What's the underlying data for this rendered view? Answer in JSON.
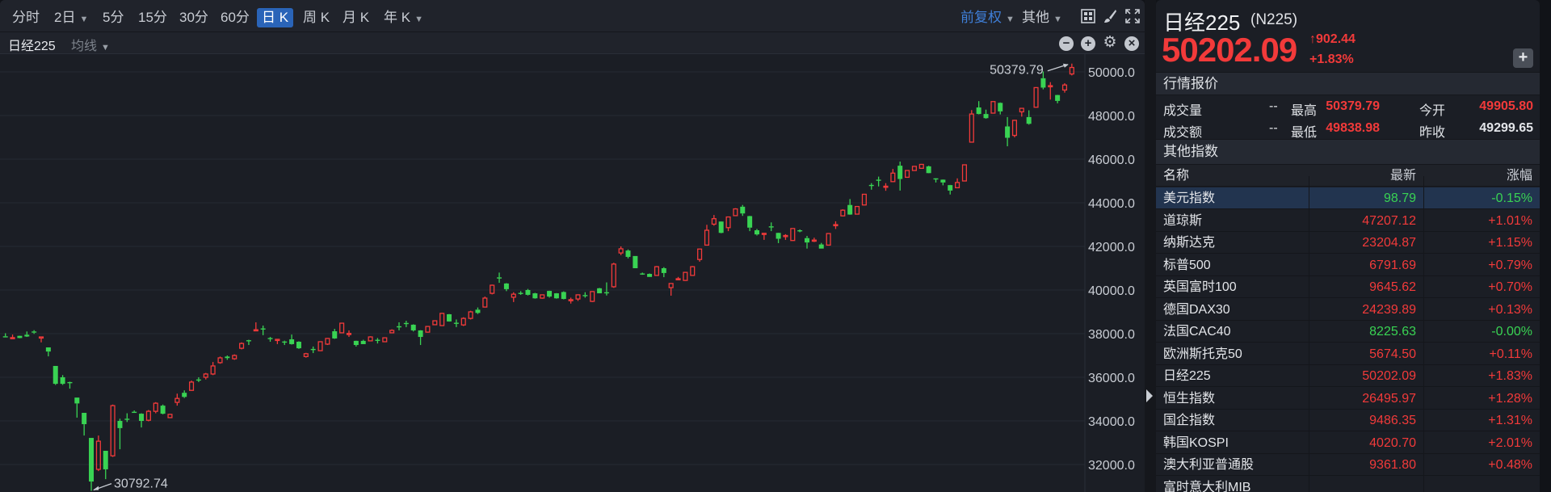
{
  "toolbar": {
    "periods": [
      {
        "label": "分时",
        "active": false
      },
      {
        "label": "2日",
        "active": false,
        "dropdown": true
      },
      {
        "label": "5分",
        "active": false
      },
      {
        "label": "15分",
        "active": false
      },
      {
        "label": "30分",
        "active": false
      },
      {
        "label": "60分",
        "active": false
      },
      {
        "label": "日 K",
        "active": true
      },
      {
        "label": "周 K",
        "active": false
      },
      {
        "label": "月 K",
        "active": false
      },
      {
        "label": "年 K",
        "active": false,
        "dropdown": true
      }
    ],
    "adjust": "前复权",
    "other": "其他",
    "icons": [
      "grid-layout-icon",
      "brush-icon",
      "fullscreen-icon"
    ]
  },
  "chart_header": {
    "title": "日经225",
    "indicator": "均线",
    "icons": [
      "zoom-out-icon",
      "zoom-in-icon",
      "gear-icon",
      "close-icon"
    ]
  },
  "chart_data": {
    "type": "candlestick",
    "title": "",
    "ylim": [
      30792.74,
      50379.79
    ],
    "yticks": [
      "32000.0",
      "34000.0",
      "36000.0",
      "38000.0",
      "40000.0",
      "42000.0",
      "44000.0",
      "46000.0",
      "48000.0",
      "50000.0"
    ],
    "grid": true,
    "up_color": "#f23a3a",
    "down_color": "#39d353",
    "max_label": "50379.79",
    "min_label": "30792.74",
    "ohlc": [
      [
        37880,
        38020,
        37870,
        37870
      ],
      [
        37800,
        37960,
        37790,
        37820
      ],
      [
        37900,
        37910,
        37790,
        37800
      ],
      [
        37950,
        38100,
        37850,
        37870
      ],
      [
        38100,
        38160,
        37990,
        38050
      ],
      [
        37800,
        37860,
        37600,
        37850
      ],
      [
        37370,
        37370,
        36960,
        37180
      ],
      [
        36520,
        36520,
        35650,
        35700
      ],
      [
        36000,
        36100,
        35650,
        35700
      ],
      [
        35780,
        35800,
        35480,
        35760
      ],
      [
        35070,
        35070,
        34150,
        34800
      ],
      [
        34370,
        34370,
        33330,
        33850
      ],
      [
        33220,
        33220,
        30792.74,
        31220
      ],
      [
        31780,
        33330,
        31700,
        33070
      ],
      [
        32630,
        32630,
        31330,
        31780
      ],
      [
        32400,
        34750,
        32350,
        34700
      ],
      [
        34000,
        34100,
        32700,
        33670
      ],
      [
        34100,
        34350,
        33950,
        34080
      ],
      [
        34420,
        34480,
        34380,
        34400
      ],
      [
        34330,
        34350,
        33700,
        34000
      ],
      [
        34030,
        34500,
        33980,
        34440
      ],
      [
        34440,
        34860,
        34350,
        34810
      ],
      [
        34700,
        34750,
        34300,
        34330
      ],
      [
        34150,
        34320,
        34130,
        34300
      ],
      [
        34850,
        35250,
        34700,
        35030
      ],
      [
        35290,
        35400,
        35050,
        35100
      ],
      [
        35400,
        35850,
        35380,
        35780
      ],
      [
        35900,
        36000,
        35780,
        35850
      ],
      [
        36000,
        36200,
        35900,
        36150
      ],
      [
        36150,
        36700,
        36100,
        36520
      ],
      [
        36670,
        36950,
        36620,
        36890
      ],
      [
        36950,
        37000,
        36800,
        36880
      ],
      [
        36850,
        37050,
        36800,
        37000
      ],
      [
        37330,
        37600,
        37280,
        37550
      ],
      [
        37700,
        37720,
        37480,
        37680
      ],
      [
        38160,
        38520,
        38150,
        38180
      ],
      [
        38240,
        38370,
        37930,
        38200
      ],
      [
        37800,
        37850,
        37630,
        37770
      ],
      [
        37720,
        37760,
        37520,
        37740
      ],
      [
        37640,
        37680,
        37480,
        37600
      ],
      [
        37740,
        37960,
        37500,
        37520
      ],
      [
        37630,
        37650,
        37300,
        37330
      ],
      [
        36950,
        37120,
        36900,
        37080
      ],
      [
        37300,
        37410,
        37110,
        37280
      ],
      [
        37220,
        37650,
        37200,
        37630
      ],
      [
        37520,
        37800,
        37480,
        37780
      ],
      [
        38110,
        38220,
        37760,
        37780
      ],
      [
        38040,
        38500,
        38020,
        38480
      ],
      [
        37980,
        38150,
        37850,
        38010
      ],
      [
        37670,
        37680,
        37410,
        37480
      ],
      [
        37670,
        37720,
        37520,
        37520
      ],
      [
        37670,
        37880,
        37650,
        37850
      ],
      [
        37720,
        37800,
        37550,
        37700
      ],
      [
        37630,
        37830,
        37620,
        37810
      ],
      [
        38040,
        38200,
        38030,
        38150
      ],
      [
        38340,
        38520,
        38150,
        38320
      ],
      [
        38490,
        38590,
        38300,
        38470
      ],
      [
        38410,
        38430,
        38100,
        38150
      ],
      [
        38150,
        38160,
        37480,
        37850
      ],
      [
        38070,
        38350,
        38050,
        38330
      ],
      [
        38410,
        38600,
        38400,
        38590
      ],
      [
        38370,
        38950,
        38350,
        38930
      ],
      [
        38890,
        38900,
        38550,
        38560
      ],
      [
        38500,
        38650,
        38300,
        38450
      ],
      [
        38400,
        38750,
        38350,
        38700
      ],
      [
        38700,
        39050,
        38650,
        39000
      ],
      [
        39100,
        39200,
        38900,
        38950
      ],
      [
        39220,
        39700,
        39200,
        39630
      ],
      [
        39850,
        40250,
        39800,
        40220
      ],
      [
        40580,
        40800,
        40330,
        40550
      ],
      [
        40300,
        40320,
        39950,
        40040
      ],
      [
        39670,
        39900,
        39450,
        39810
      ],
      [
        39870,
        39950,
        39780,
        39850
      ],
      [
        40000,
        40050,
        39750,
        39780
      ],
      [
        39850,
        39870,
        39600,
        39620
      ],
      [
        39630,
        39800,
        39600,
        39780
      ],
      [
        39960,
        39970,
        39650,
        39700
      ],
      [
        39850,
        39860,
        39600,
        39620
      ],
      [
        39910,
        39940,
        39570,
        39590
      ],
      [
        39530,
        39650,
        39380,
        39560
      ],
      [
        39590,
        39800,
        39500,
        39780
      ],
      [
        39770,
        39900,
        39650,
        39740
      ],
      [
        39480,
        39950,
        39450,
        39930
      ],
      [
        40080,
        40100,
        39850,
        39850
      ],
      [
        39900,
        40350,
        39750,
        39880
      ],
      [
        40150,
        41250,
        40100,
        41190
      ],
      [
        41700,
        42000,
        41600,
        41890
      ],
      [
        41810,
        41860,
        41450,
        41520
      ],
      [
        41560,
        41560,
        41000,
        41000
      ],
      [
        40760,
        40800,
        40700,
        40740
      ],
      [
        40740,
        40760,
        40600,
        40600
      ],
      [
        40670,
        41100,
        40650,
        41070
      ],
      [
        41000,
        41050,
        40590,
        40780
      ],
      [
        40110,
        40310,
        39740,
        40300
      ],
      [
        40500,
        40600,
        40450,
        40520
      ],
      [
        40440,
        40830,
        40420,
        40810
      ],
      [
        40670,
        41100,
        40650,
        41070
      ],
      [
        41400,
        41880,
        41300,
        41880
      ],
      [
        42060,
        42990,
        42050,
        42740
      ],
      [
        43020,
        43440,
        42950,
        43270
      ],
      [
        43140,
        43150,
        42600,
        42620
      ],
      [
        42860,
        43360,
        42700,
        43350
      ],
      [
        43410,
        43750,
        43400,
        43720
      ],
      [
        43820,
        43900,
        43400,
        43510
      ],
      [
        43390,
        43400,
        42700,
        42860
      ],
      [
        42740,
        42800,
        42500,
        42550
      ],
      [
        42580,
        42600,
        42300,
        42600
      ],
      [
        42920,
        43100,
        42700,
        42900
      ],
      [
        42620,
        42630,
        42150,
        42350
      ],
      [
        42480,
        42560,
        42300,
        42500
      ],
      [
        42270,
        42820,
        42260,
        42820
      ],
      [
        42740,
        42780,
        42650,
        42720
      ],
      [
        42380,
        42480,
        41900,
        42180
      ],
      [
        42270,
        42400,
        42200,
        42290
      ],
      [
        42090,
        42160,
        41900,
        41900
      ],
      [
        42060,
        42600,
        42050,
        42590
      ],
      [
        42980,
        43150,
        42800,
        43000
      ],
      [
        43400,
        43700,
        43380,
        43660
      ],
      [
        43900,
        44170,
        43450,
        43460
      ],
      [
        43480,
        43850,
        43470,
        43830
      ],
      [
        43900,
        44400,
        43890,
        44390
      ],
      [
        44820,
        44900,
        44600,
        44800
      ],
      [
        45060,
        45200,
        44750,
        45040
      ],
      [
        44740,
        44900,
        44550,
        44760
      ],
      [
        44970,
        45550,
        44950,
        45360
      ],
      [
        45700,
        45890,
        44560,
        45090
      ],
      [
        45170,
        45500,
        45150,
        45480
      ],
      [
        45480,
        45680,
        45470,
        45670
      ],
      [
        45580,
        45780,
        45560,
        45760
      ],
      [
        45670,
        45700,
        45350,
        45360
      ],
      [
        45120,
        45130,
        44930,
        45110
      ],
      [
        45060,
        45070,
        44800,
        44930
      ],
      [
        44810,
        44820,
        44380,
        44560
      ],
      [
        44690,
        45120,
        44680,
        44930
      ],
      [
        45000,
        45760,
        44990,
        45740
      ],
      [
        46780,
        48250,
        46770,
        48070
      ],
      [
        48370,
        48660,
        48050,
        48070
      ],
      [
        48070,
        48270,
        47850,
        47880
      ],
      [
        48110,
        48650,
        48100,
        48640
      ],
      [
        48580,
        48600,
        48050,
        48190
      ],
      [
        47500,
        47930,
        46590,
        46980
      ],
      [
        47090,
        47800,
        47000,
        47780
      ],
      [
        48170,
        48340,
        47950,
        48330
      ],
      [
        47930,
        48240,
        47580,
        47620
      ],
      [
        48380,
        49300,
        48370,
        49280
      ],
      [
        49710,
        50020,
        49200,
        49280
      ],
      [
        49320,
        49530,
        48730,
        49370
      ],
      [
        48940,
        48950,
        48560,
        48670
      ],
      [
        49170,
        49480,
        49050,
        49400
      ],
      [
        49905.8,
        50379.79,
        49838.98,
        50202.09
      ]
    ]
  },
  "quote": {
    "name": "日经225",
    "code": "(N225)",
    "price": "50202.09",
    "change": "902.44",
    "change_pct": "+1.83%",
    "up_arrow": "↑",
    "add_label": "+",
    "section_title": "行情报价",
    "rows": [
      {
        "l1": "成交量",
        "v1": "--",
        "l2": "最高",
        "v2": "50379.79",
        "l3": "今开",
        "v3": "49905.80",
        "c3": "#f23a3a"
      },
      {
        "l1": "成交额",
        "v1": "--",
        "l2": "最低",
        "v2": "49838.98",
        "l3": "昨收",
        "v3": "49299.65",
        "c3": "#e3e5e9"
      }
    ]
  },
  "indices": {
    "section_title": "其他指数",
    "headers": [
      "名称",
      "最新",
      "涨幅"
    ],
    "rows": [
      {
        "name": "美元指数",
        "last": "98.79",
        "pct": "-0.15%",
        "dir": "down",
        "selected": true
      },
      {
        "name": "道琼斯",
        "last": "47207.12",
        "pct": "+1.01%",
        "dir": "up"
      },
      {
        "name": "纳斯达克",
        "last": "23204.87",
        "pct": "+1.15%",
        "dir": "up"
      },
      {
        "name": "标普500",
        "last": "6791.69",
        "pct": "+0.79%",
        "dir": "up"
      },
      {
        "name": "英国富时100",
        "last": "9645.62",
        "pct": "+0.70%",
        "dir": "up"
      },
      {
        "name": "德国DAX30",
        "last": "24239.89",
        "pct": "+0.13%",
        "dir": "up"
      },
      {
        "name": "法国CAC40",
        "last": "8225.63",
        "pct": "-0.00%",
        "dir": "down"
      },
      {
        "name": "欧洲斯托克50",
        "last": "5674.50",
        "pct": "+0.11%",
        "dir": "up"
      },
      {
        "name": "日经225",
        "last": "50202.09",
        "pct": "+1.83%",
        "dir": "up"
      },
      {
        "name": "恒生指数",
        "last": "26495.97",
        "pct": "+1.28%",
        "dir": "up"
      },
      {
        "name": "国企指数",
        "last": "9486.35",
        "pct": "+1.31%",
        "dir": "up"
      },
      {
        "name": "韩国KOSPI",
        "last": "4020.70",
        "pct": "+2.01%",
        "dir": "up"
      },
      {
        "name": "澳大利亚普通股",
        "last": "9361.80",
        "pct": "+0.48%",
        "dir": "up"
      },
      {
        "name": "富时意大利MIB",
        "last": "",
        "pct": "",
        "dir": "up"
      }
    ]
  },
  "colors": {
    "up": "#f23a3a",
    "down": "#39d353",
    "accent": "#2a64b8"
  }
}
